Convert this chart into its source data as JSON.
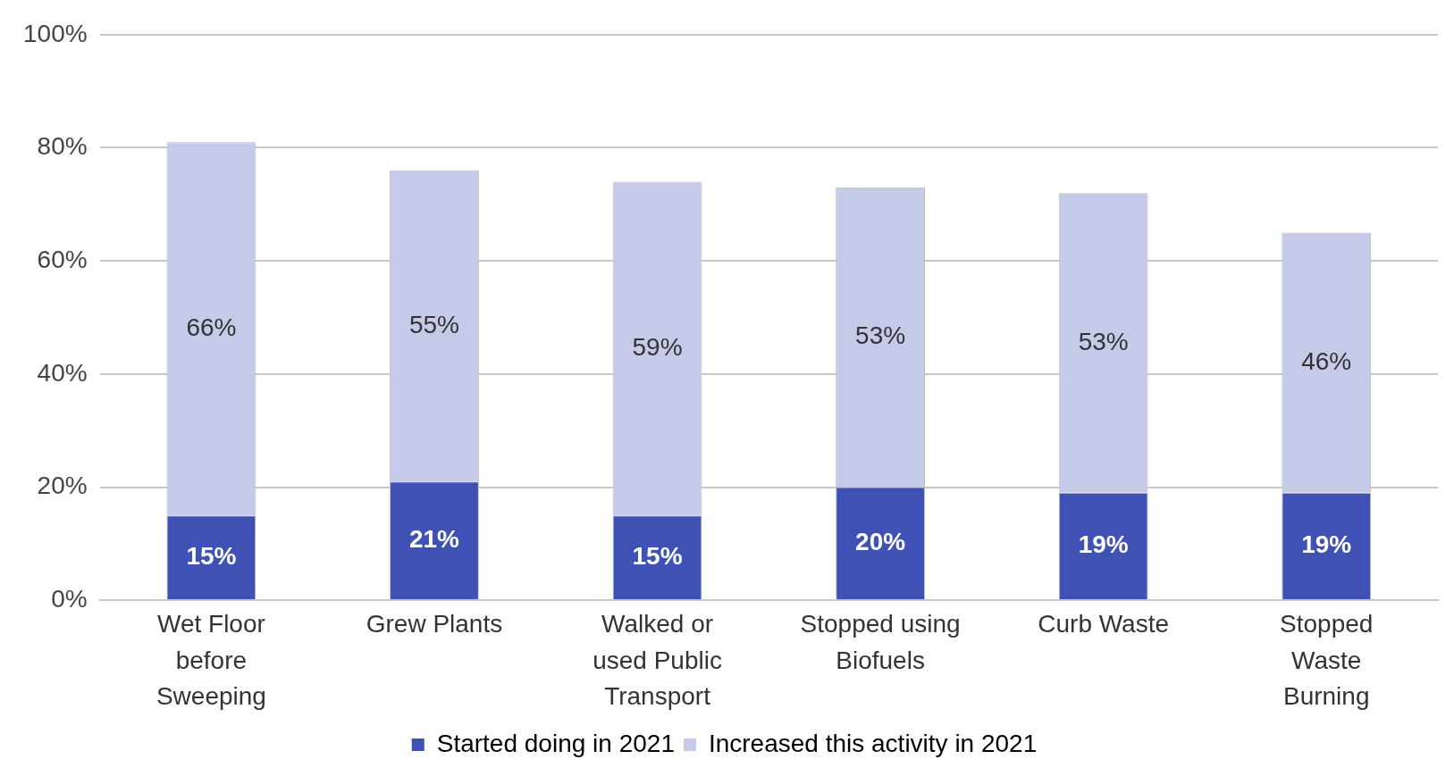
{
  "chart_data": {
    "type": "bar",
    "stacked": true,
    "categories": [
      "Wet Floor before Sweeping",
      "Grew Plants",
      "Walked or used Public Transport",
      "Stopped using Biofuels",
      "Curb Waste",
      "Stopped Waste Burning"
    ],
    "series": [
      {
        "name": "Started doing in 2021",
        "color": "#3f51b5",
        "values": [
          15,
          21,
          15,
          20,
          19,
          19
        ],
        "value_labels": [
          "15%",
          "21%",
          "15%",
          "20%",
          "19%",
          "19%"
        ]
      },
      {
        "name": "Increased this activity in 2021",
        "color": "#c5cae9",
        "values": [
          66,
          55,
          59,
          53,
          53,
          46
        ],
        "value_labels": [
          "66%",
          "55%",
          "59%",
          "53%",
          "53%",
          "46%"
        ]
      }
    ],
    "ylim": [
      0,
      100
    ],
    "yticks": [
      {
        "value": 0,
        "label": "0%"
      },
      {
        "value": 20,
        "label": "20%"
      },
      {
        "value": 40,
        "label": "40%"
      },
      {
        "value": 60,
        "label": "60%"
      },
      {
        "value": 80,
        "label": "80%"
      },
      {
        "value": 100,
        "label": "100%"
      }
    ],
    "grid": "y",
    "legend": "bottom"
  }
}
